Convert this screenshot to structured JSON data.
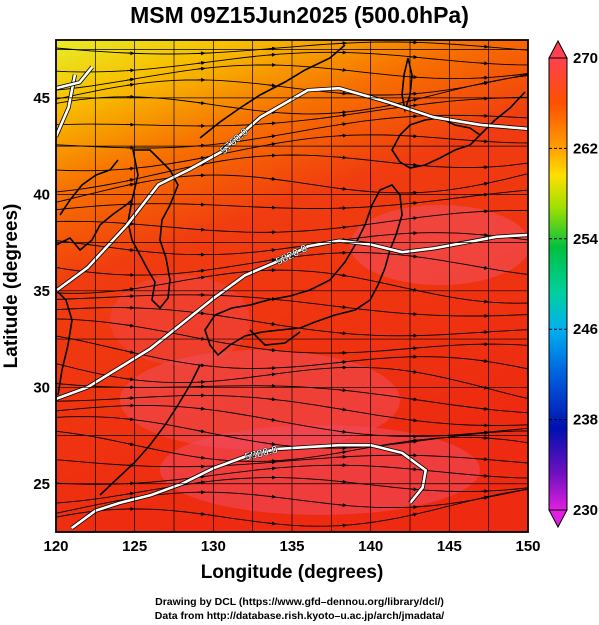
{
  "title": "MSM 09Z15Jun2025 (500.0hPa)",
  "colors": {
    "cold_edge": "#d8f040",
    "mid": "#f7a000",
    "warm": "#ee2a10",
    "warm_pink": "#f05060",
    "contour": "#ffffff",
    "coast": "#000000"
  },
  "chart_data": {
    "type": "heatmap",
    "xlabel": "Longitude (degrees)",
    "ylabel": "Latitude  (degrees)",
    "xlim": [
      120,
      150
    ],
    "ylim": [
      22.5,
      48
    ],
    "xticks": [
      120,
      125,
      130,
      135,
      140,
      145,
      150
    ],
    "yticks": [
      25,
      30,
      35,
      40,
      45
    ],
    "grid": true,
    "colorbar": {
      "min": 230,
      "max": 270,
      "ticks": [
        270,
        262,
        254,
        246,
        238,
        230
      ],
      "colors": [
        "#e020e0",
        "#7010c0",
        "#0010b0",
        "#0060e0",
        "#00b0f0",
        "#00d0a0",
        "#00c040",
        "#40d000",
        "#a0e000",
        "#ffe000",
        "#ffb000",
        "#ff7000",
        "#ff3000",
        "#ff4050"
      ]
    },
    "contours": [
      {
        "label": "5760.0",
        "points": [
          [
            120,
            35.0
          ],
          [
            122,
            36.2
          ],
          [
            124.5,
            38.4
          ],
          [
            126.5,
            40.5
          ],
          [
            128.5,
            41.3
          ],
          [
            130.5,
            42.2
          ],
          [
            133,
            44.0
          ],
          [
            136,
            45.4
          ],
          [
            138,
            45.5
          ],
          [
            141,
            44.8
          ],
          [
            144,
            44.0
          ],
          [
            147,
            43.6
          ],
          [
            150,
            43.4
          ]
        ]
      },
      {
        "label": "5820.0",
        "points": [
          [
            120,
            29.4
          ],
          [
            122,
            30.0
          ],
          [
            124,
            31.0
          ],
          [
            126,
            32.0
          ],
          [
            128,
            33.3
          ],
          [
            130,
            34.6
          ],
          [
            132,
            35.8
          ],
          [
            134,
            36.5
          ],
          [
            136,
            37.3
          ],
          [
            138,
            37.6
          ],
          [
            140,
            37.4
          ],
          [
            142,
            37.0
          ],
          [
            144,
            37.2
          ],
          [
            146,
            37.5
          ],
          [
            148,
            37.8
          ],
          [
            150,
            37.9
          ]
        ]
      },
      {
        "label": "5880.0",
        "points": [
          [
            121,
            22.7
          ],
          [
            122.5,
            23.6
          ],
          [
            124,
            24.0
          ],
          [
            126,
            24.4
          ],
          [
            128,
            25.0
          ],
          [
            130,
            25.8
          ],
          [
            132,
            26.4
          ],
          [
            134,
            26.8
          ],
          [
            136,
            26.9
          ],
          [
            138,
            27.0
          ],
          [
            140,
            27.0
          ],
          [
            142,
            26.6
          ],
          [
            143.5,
            25.7
          ],
          [
            143.3,
            24.8
          ],
          [
            142.5,
            24.0
          ]
        ]
      },
      {
        "label": "",
        "points": [
          [
            120,
            43.0
          ],
          [
            120.8,
            44.5
          ],
          [
            121.2,
            46.2
          ]
        ]
      },
      {
        "label": "",
        "points": [
          [
            120,
            45.5
          ],
          [
            121.5,
            45.8
          ],
          [
            122.3,
            46.6
          ]
        ]
      }
    ],
    "wind_field": "streamlines"
  },
  "credits": {
    "line1": "Drawing by DCL (https://www.gfd–dennou.org/library/dcl/)",
    "line2": "Data from http://database.rish.kyoto–u.ac.jp/arch/jmadata/"
  }
}
